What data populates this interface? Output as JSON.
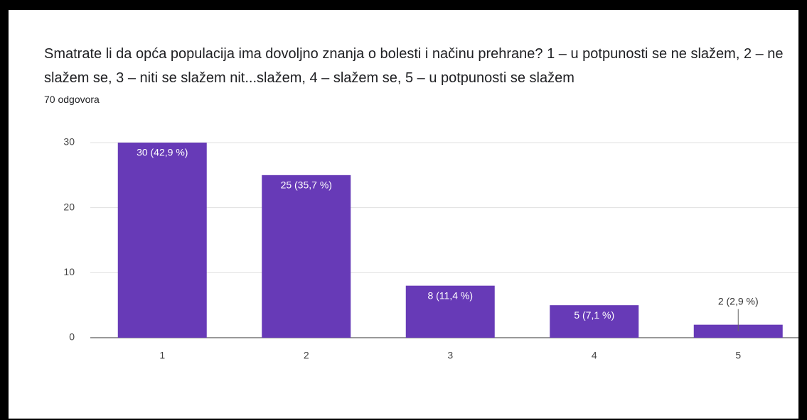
{
  "chart_data": {
    "type": "bar",
    "title": "Smatrate li da opća populacija ima dovoljno znanja o bolesti i načinu prehrane?  1 – u potpunosti se ne slažem, 2 – ne slažem se, 3 – niti se slažem nit...slažem, 4 –  slažem se, 5 – u potpunosti se slažem",
    "subtitle": "70 odgovora",
    "categories": [
      "1",
      "2",
      "3",
      "4",
      "5"
    ],
    "values": [
      30,
      25,
      8,
      5,
      2
    ],
    "value_labels": [
      "30 (42,9 %)",
      "25 (35,7 %)",
      "8 (11,4 %)",
      "5 (7,1 %)",
      "2 (2,9 %)"
    ],
    "color": "#673ab7",
    "ylim": [
      0,
      30
    ],
    "yticks": [
      0,
      10,
      20,
      30
    ],
    "grid": true
  }
}
